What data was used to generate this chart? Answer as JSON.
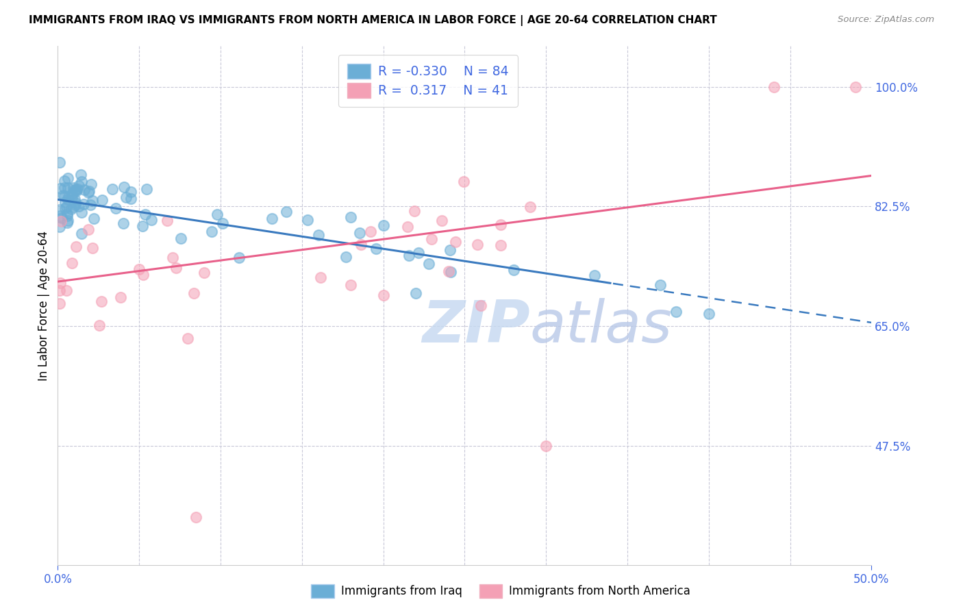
{
  "title": "IMMIGRANTS FROM IRAQ VS IMMIGRANTS FROM NORTH AMERICA IN LABOR FORCE | AGE 20-64 CORRELATION CHART",
  "source": "Source: ZipAtlas.com",
  "xlabel_blue": "Immigrants from Iraq",
  "xlabel_pink": "Immigrants from North America",
  "ylabel": "In Labor Force | Age 20-64",
  "xlim": [
    0.0,
    0.5
  ],
  "ylim": [
    0.3,
    1.06
  ],
  "yticks": [
    0.475,
    0.65,
    0.825,
    1.0
  ],
  "ytick_labels": [
    "47.5%",
    "65.0%",
    "82.5%",
    "100.0%"
  ],
  "R_blue": -0.33,
  "N_blue": 84,
  "R_pink": 0.317,
  "N_pink": 41,
  "blue_color": "#6baed6",
  "pink_color": "#f4a0b5",
  "trend_blue": "#3a7abf",
  "trend_pink": "#e8608a",
  "watermark_color": "#c5d8f0",
  "axis_color": "#4169E1",
  "grid_color": "#c8c8d8",
  "background": "#ffffff",
  "blue_line_intercept": 0.835,
  "blue_line_slope": -0.36,
  "pink_line_intercept": 0.715,
  "pink_line_slope": 0.31
}
